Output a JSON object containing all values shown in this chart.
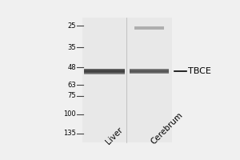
{
  "fig_width": 3.0,
  "fig_height": 2.0,
  "dpi": 100,
  "bg_color": "#f0f0f0",
  "gel_bg_light": "#e8e8e8",
  "gel_bg_dark": "#c8c8c8",
  "lane1_label": "Liver",
  "lane2_label": "Cerebrum",
  "marker_fontsize": 6.0,
  "label_fontsize": 7.5,
  "label_rotation": 45,
  "tbce_label": "TBCE",
  "tbce_fontsize": 8,
  "markers": [
    {
      "label": "135",
      "kda": 135
    },
    {
      "label": "100",
      "kda": 100
    },
    {
      "label": "75",
      "kda": 75
    },
    {
      "label": "63",
      "kda": 63
    },
    {
      "label": "48",
      "kda": 48
    },
    {
      "label": "35",
      "kda": 35
    },
    {
      "label": "25",
      "kda": 25
    }
  ],
  "log_min": 22,
  "log_max": 155,
  "band_kda": 51,
  "band_color": "#2a2a2a",
  "faint_band_kda": 25,
  "faint_band_alpha": 0.3
}
